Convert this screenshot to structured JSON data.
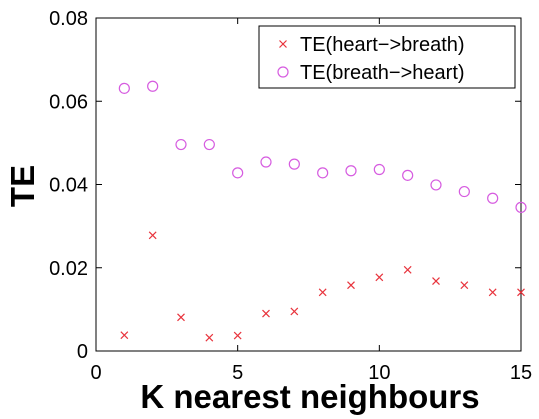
{
  "chart_data": {
    "type": "scatter",
    "title": "",
    "xlabel": "K nearest neighbours",
    "ylabel": "TE",
    "xlim": [
      0,
      15
    ],
    "ylim": [
      0,
      0.08
    ],
    "xticks": [
      0,
      5,
      10,
      15
    ],
    "xtick_labels": [
      "0",
      "5",
      "10",
      "15"
    ],
    "yticks": [
      0,
      0.02,
      0.04,
      0.06,
      0.08
    ],
    "ytick_labels": [
      "0",
      "0.02",
      "0.04",
      "0.06",
      "0.08"
    ],
    "grid": false,
    "legend_position": "top-right",
    "series": [
      {
        "name": "TE(heart−>breath)",
        "marker": "x",
        "color": "#e8343d",
        "x": [
          1,
          2,
          3,
          4,
          5,
          6,
          7,
          8,
          9,
          10,
          11,
          12,
          13,
          14,
          15
        ],
        "y": [
          0.0038,
          0.0278,
          0.0081,
          0.0032,
          0.0037,
          0.009,
          0.0095,
          0.0141,
          0.0158,
          0.0177,
          0.0195,
          0.0168,
          0.0158,
          0.0141,
          0.0141
        ]
      },
      {
        "name": "TE(breath−>heart)",
        "marker": "o",
        "color": "#d65ce0",
        "x": [
          1,
          2,
          3,
          4,
          5,
          6,
          7,
          8,
          9,
          10,
          11,
          12,
          13,
          14,
          15
        ],
        "y": [
          0.0631,
          0.0636,
          0.0496,
          0.0496,
          0.0428,
          0.0454,
          0.0449,
          0.0428,
          0.0433,
          0.0436,
          0.0422,
          0.0399,
          0.0383,
          0.0367,
          0.0345
        ]
      }
    ]
  }
}
